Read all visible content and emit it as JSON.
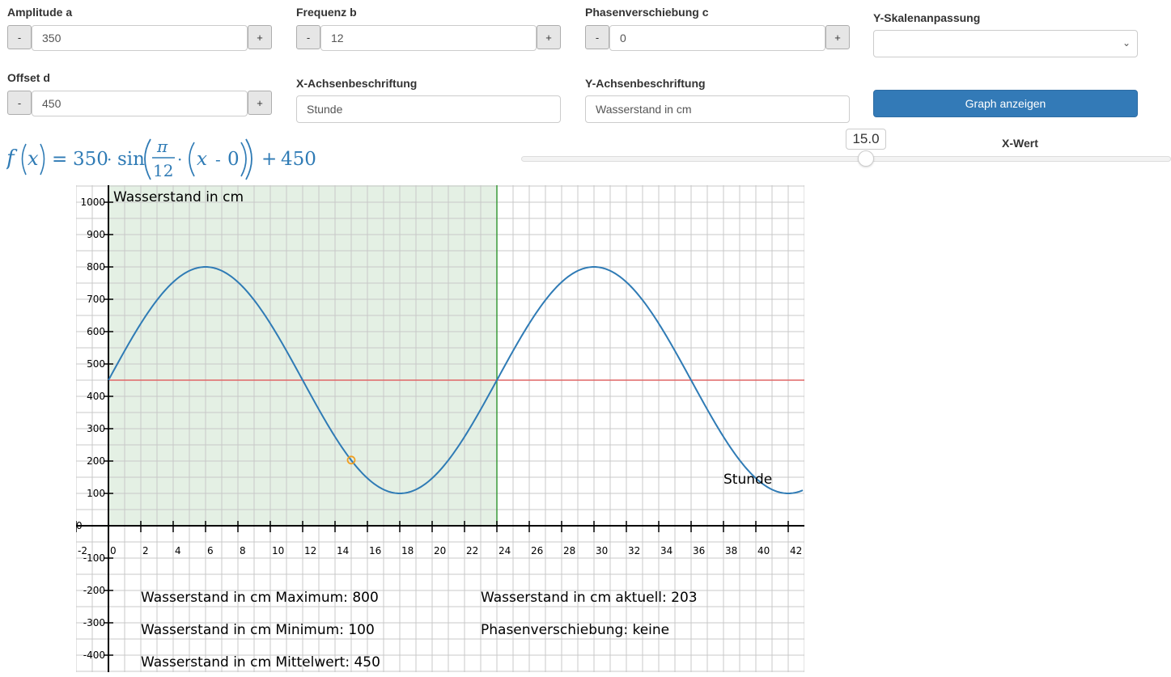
{
  "controls": {
    "amplitude": {
      "label": "Amplitude a",
      "value": "350",
      "minus": "-",
      "plus": "+"
    },
    "frequenz": {
      "label": "Frequenz b",
      "value": "12",
      "minus": "-",
      "plus": "+"
    },
    "phase": {
      "label": "Phasenverschiebung c",
      "value": "0",
      "minus": "-",
      "plus": "+"
    },
    "offset": {
      "label": "Offset d",
      "value": "450",
      "minus": "-",
      "plus": "+"
    },
    "y_scale": {
      "label": "Y-Skalenanpassung",
      "value": ""
    },
    "x_axis_label": {
      "label": "X-Achsenbeschriftung",
      "value": "Stunde"
    },
    "y_axis_label": {
      "label": "Y-Achsenbeschriftung",
      "value": "Wasserstand in cm"
    },
    "show_graph_button": "Graph anzeigen"
  },
  "formula": {
    "f": "f",
    "x": "x",
    "eq": "=",
    "a": "350",
    "dot": "·",
    "sin": "sin",
    "pi": "π",
    "b": "12",
    "minus": "-",
    "c": "0",
    "plus": "+",
    "d": "450"
  },
  "slider": {
    "label": "X-Wert",
    "value": "15.0",
    "fraction": 0.536
  },
  "colors": {
    "curve": "#2f7bb5",
    "mean_line": "#e06666",
    "period_line": "#3a9a3a",
    "period_fill": "#e4f0e4",
    "grid": "#c8c8c8",
    "marker": "#f0a020",
    "button": "#337ab7"
  },
  "chart_data": {
    "type": "line",
    "function": {
      "amplitude": 350,
      "period": 24,
      "phase": 0,
      "offset": 450
    },
    "xlim": [
      -2,
      43
    ],
    "ylim": [
      -450,
      1050
    ],
    "x_ticks": [
      -2,
      0,
      2,
      4,
      6,
      8,
      10,
      12,
      14,
      16,
      18,
      20,
      22,
      24,
      26,
      28,
      30,
      32,
      34,
      36,
      38,
      40,
      42
    ],
    "y_ticks": [
      -400,
      -300,
      -200,
      -100,
      0,
      100,
      200,
      300,
      400,
      500,
      600,
      700,
      800,
      900,
      1000
    ],
    "x_tick_labels": [
      "-2",
      "0",
      "2",
      "4",
      "6",
      "8",
      "10",
      "12",
      "14",
      "16",
      "18",
      "20",
      "22",
      "24",
      "26",
      "28",
      "30",
      "32",
      "34",
      "36",
      "38",
      "40",
      "42"
    ],
    "y_tick_labels": [
      "-400",
      "-300",
      "-200",
      "-100",
      "0",
      "100",
      "200",
      "300",
      "400",
      "500",
      "600",
      "700",
      "800",
      "900",
      "1000"
    ],
    "ylabel": "Wasserstand in cm",
    "xlabel": "Stunde",
    "mean_value": 450,
    "shaded_x_range": [
      0,
      24
    ],
    "period_end_x": 24,
    "marker": {
      "x": 15,
      "y": 203
    },
    "grid": true,
    "stats": {
      "max": "Wasserstand in cm Maximum: 800",
      "min": "Wasserstand in cm Minimum: 100",
      "mean": "Wasserstand in cm Mittelwert: 450",
      "current": "Wasserstand in cm aktuell: 203",
      "phase": "Phasenverschiebung: keine"
    }
  }
}
